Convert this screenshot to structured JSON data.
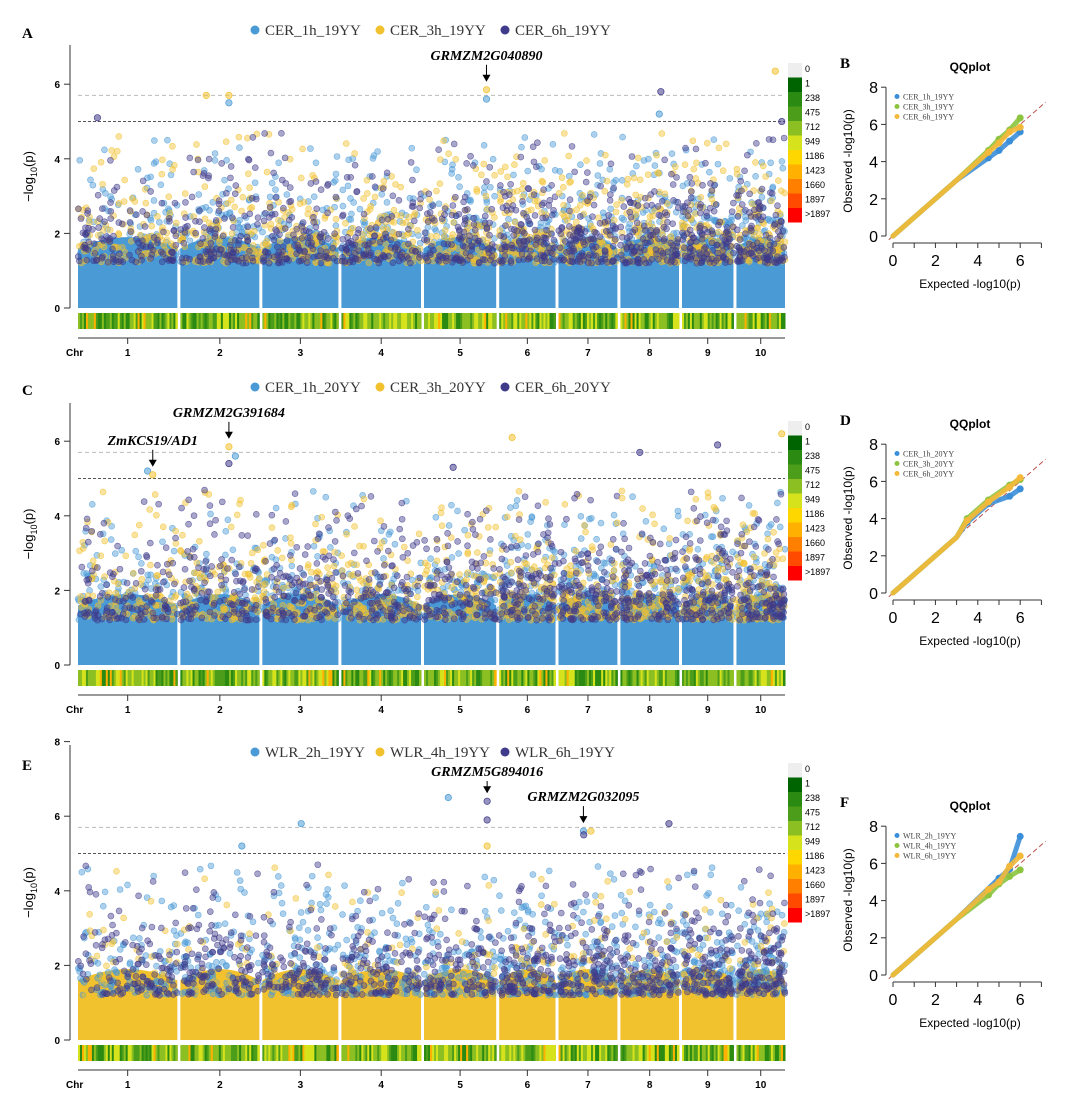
{
  "chart_data": [
    {
      "panel_label": "A",
      "type": "scatter",
      "subtype": "manhattan",
      "ylabel": "-log10(p)",
      "xlabel": "Chr",
      "ylim": [
        0,
        7
      ],
      "yticks": [
        0,
        2,
        4,
        6
      ],
      "chromosomes": [
        "1",
        "2",
        "3",
        "4",
        "5",
        "6",
        "7",
        "8",
        "9",
        "10"
      ],
      "chromosome_length_mb": [
        307,
        244,
        235,
        246,
        223,
        174,
        182,
        181,
        159,
        150
      ],
      "thresholds": [
        5,
        5.7
      ],
      "series": [
        {
          "name": "CER_1h_19YY",
          "color": "#4a9ad6",
          "peaks": [
            {
              "chr": "2",
              "pos_mb": 150,
              "y": 5.5
            },
            {
              "chr": "5",
              "pos_mb": 193,
              "y": 5.6
            },
            {
              "chr": "8",
              "pos_mb": 120,
              "y": 5.2
            }
          ]
        },
        {
          "name": "CER_3h_19YY",
          "color": "#f2c12e",
          "peaks": [
            {
              "chr": "2",
              "pos_mb": 150,
              "y": 5.7
            },
            {
              "chr": "2",
              "pos_mb": 80,
              "y": 5.7
            },
            {
              "chr": "5",
              "pos_mb": 193,
              "y": 5.85
            },
            {
              "chr": "10",
              "pos_mb": 120,
              "y": 6.35
            }
          ]
        },
        {
          "name": "CER_6h_19YY",
          "color": "#3f3a8a",
          "peaks": [
            {
              "chr": "8",
              "pos_mb": 125,
              "y": 5.8
            },
            {
              "chr": "1",
              "pos_mb": 60,
              "y": 5.1
            },
            {
              "chr": "10",
              "pos_mb": 140,
              "y": 5.0
            }
          ]
        }
      ],
      "annotations": [
        {
          "text": "GRMZM2G040890",
          "chr": "5",
          "pos_mb": 193
        }
      ]
    },
    {
      "panel_label": "C",
      "type": "scatter",
      "subtype": "manhattan",
      "ylabel": "-log10(p)",
      "xlabel": "Chr",
      "ylim": [
        0,
        7
      ],
      "yticks": [
        0,
        2,
        4,
        6
      ],
      "chromosomes": [
        "1",
        "2",
        "3",
        "4",
        "5",
        "6",
        "7",
        "8",
        "9",
        "10"
      ],
      "chromosome_length_mb": [
        307,
        244,
        235,
        246,
        223,
        174,
        182,
        181,
        159,
        150
      ],
      "thresholds": [
        5,
        5.7
      ],
      "series": [
        {
          "name": "CER_1h_20YY",
          "color": "#4a9ad6",
          "peaks": [
            {
              "chr": "1",
              "pos_mb": 215,
              "y": 5.2
            },
            {
              "chr": "2",
              "pos_mb": 170,
              "y": 5.6
            }
          ]
        },
        {
          "name": "CER_3h_20YY",
          "color": "#f2c12e",
          "peaks": [
            {
              "chr": "1",
              "pos_mb": 231,
              "y": 5.1
            },
            {
              "chr": "2",
              "pos_mb": 150,
              "y": 5.85
            },
            {
              "chr": "6",
              "pos_mb": 40,
              "y": 6.1
            },
            {
              "chr": "10",
              "pos_mb": 140,
              "y": 6.2
            }
          ]
        },
        {
          "name": "CER_6h_20YY",
          "color": "#3f3a8a",
          "peaks": [
            {
              "chr": "2",
              "pos_mb": 150,
              "y": 5.4
            },
            {
              "chr": "5",
              "pos_mb": 90,
              "y": 5.3
            },
            {
              "chr": "9",
              "pos_mb": 110,
              "y": 5.9
            },
            {
              "chr": "8",
              "pos_mb": 60,
              "y": 5.7
            }
          ]
        }
      ],
      "annotations": [
        {
          "text": "ZmKCS19/AD1",
          "chr": "1",
          "pos_mb": 231
        },
        {
          "text": "GRMZM2G391684",
          "chr": "2",
          "pos_mb": 150
        }
      ]
    },
    {
      "panel_label": "E",
      "type": "scatter",
      "subtype": "manhattan",
      "ylabel": "-log10(p)",
      "xlabel": "Chr",
      "ylim": [
        0,
        8
      ],
      "yticks": [
        0,
        2,
        4,
        6,
        8
      ],
      "chromosomes": [
        "1",
        "2",
        "3",
        "4",
        "5",
        "6",
        "7",
        "8",
        "9",
        "10"
      ],
      "chromosome_length_mb": [
        307,
        244,
        235,
        246,
        223,
        174,
        182,
        181,
        159,
        150
      ],
      "thresholds": [
        5,
        5.7
      ],
      "series": [
        {
          "name": "WLR_2h_19YY",
          "color": "#4a9ad6",
          "peaks": [
            {
              "chr": "3",
              "pos_mb": 120,
              "y": 5.8
            },
            {
              "chr": "5",
              "pos_mb": 75,
              "y": 6.5
            },
            {
              "chr": "7",
              "pos_mb": 77,
              "y": 5.6
            },
            {
              "chr": "2",
              "pos_mb": 190,
              "y": 5.2
            }
          ]
        },
        {
          "name": "WLR_4h_19YY",
          "color": "#f2c12e",
          "peaks": [
            {
              "chr": "5",
              "pos_mb": 195,
              "y": 5.2
            },
            {
              "chr": "7",
              "pos_mb": 100,
              "y": 5.6
            }
          ]
        },
        {
          "name": "WLR_6h_19YY",
          "color": "#3f3a8a",
          "peaks": [
            {
              "chr": "5",
              "pos_mb": 195,
              "y": 6.4
            },
            {
              "chr": "5",
              "pos_mb": 195,
              "y": 5.9
            },
            {
              "chr": "8",
              "pos_mb": 150,
              "y": 5.8
            },
            {
              "chr": "7",
              "pos_mb": 78,
              "y": 5.5
            }
          ]
        }
      ],
      "annotations": [
        {
          "text": "GRMZM5G894016",
          "chr": "5",
          "pos_mb": 195
        },
        {
          "text": "GRMZM2G032095",
          "chr": "7",
          "pos_mb": 77
        }
      ]
    },
    {
      "panel_label": "B",
      "type": "scatter",
      "subtype": "qq",
      "title": "QQplot",
      "xlabel": "Expected -log10(p)",
      "ylabel": "Observed -log10(p)",
      "xlim": [
        0,
        7
      ],
      "ylim": [
        0,
        8
      ],
      "xticks": [
        0,
        2,
        4,
        6
      ],
      "yticks": [
        0,
        2,
        4,
        6,
        8
      ],
      "series": [
        {
          "name": "CER_1h_19YY",
          "color": "#3b8fd9",
          "tail": [
            [
              4.5,
              4.2
            ],
            [
              5,
              4.6
            ],
            [
              5.5,
              5.1
            ],
            [
              6,
              5.6
            ]
          ]
        },
        {
          "name": "CER_3h_19YY",
          "color": "#8cc43f",
          "tail": [
            [
              4.5,
              4.6
            ],
            [
              5,
              5.2
            ],
            [
              5.5,
              5.7
            ],
            [
              6,
              6.35
            ]
          ]
        },
        {
          "name": "CER_6h_19YY",
          "color": "#f4b93a",
          "tail": [
            [
              4.5,
              4.5
            ],
            [
              5,
              5
            ],
            [
              5.5,
              5.6
            ],
            [
              6,
              5.85
            ]
          ]
        }
      ]
    },
    {
      "panel_label": "D",
      "type": "scatter",
      "subtype": "qq",
      "title": "QQplot",
      "xlabel": "Expected -log10(p)",
      "ylabel": "Observed -log10(p)",
      "xlim": [
        0,
        7
      ],
      "ylim": [
        0,
        8
      ],
      "xticks": [
        0,
        2,
        4,
        6
      ],
      "yticks": [
        0,
        2,
        4,
        6,
        8
      ],
      "series": [
        {
          "name": "CER_1h_20YY",
          "color": "#3b8fd9",
          "tail": [
            [
              3.5,
              3.8
            ],
            [
              4.5,
              4.8
            ],
            [
              5.5,
              5.2
            ],
            [
              6,
              5.6
            ]
          ]
        },
        {
          "name": "CER_3h_20YY",
          "color": "#8cc43f",
          "tail": [
            [
              3.5,
              4
            ],
            [
              4.5,
              5
            ],
            [
              5.5,
              5.8
            ],
            [
              6,
              6.1
            ]
          ]
        },
        {
          "name": "CER_6h_20YY",
          "color": "#f4b93a",
          "tail": [
            [
              3.5,
              3.9
            ],
            [
              4.5,
              4.9
            ],
            [
              5.5,
              5.7
            ],
            [
              6,
              6.2
            ]
          ]
        }
      ]
    },
    {
      "panel_label": "F",
      "type": "scatter",
      "subtype": "qq",
      "title": "QQplot",
      "xlabel": "Expected -log10(p)",
      "ylabel": "Observed -log10(p)",
      "xlim": [
        0,
        7
      ],
      "ylim": [
        0,
        8
      ],
      "xticks": [
        0,
        2,
        4,
        6
      ],
      "yticks": [
        0,
        2,
        4,
        6,
        8
      ],
      "series": [
        {
          "name": "WLR_2h_19YY",
          "color": "#3b8fd9",
          "tail": [
            [
              5,
              5.2
            ],
            [
              5.5,
              5.7
            ],
            [
              6,
              7.45
            ]
          ]
        },
        {
          "name": "WLR_4h_19YY",
          "color": "#8cc43f",
          "tail": [
            [
              4.5,
              4.3
            ],
            [
              5,
              4.9
            ],
            [
              5.5,
              5.3
            ],
            [
              6,
              5.65
            ]
          ]
        },
        {
          "name": "WLR_6h_19YY",
          "color": "#f4b93a",
          "tail": [
            [
              4.5,
              4.6
            ],
            [
              5,
              5
            ],
            [
              5.5,
              5.85
            ],
            [
              6,
              6.4
            ]
          ]
        }
      ]
    }
  ],
  "density_legend": {
    "values": [
      "0",
      "1",
      "238",
      "475",
      "712",
      "949",
      "1186",
      "1423",
      "1660",
      "1897",
      ">1897"
    ],
    "colors": [
      "#eeeeee",
      "#006400",
      "#2b8a12",
      "#4c9e1a",
      "#8cbf22",
      "#d6e21c",
      "#ffd700",
      "#ffb000",
      "#ff8000",
      "#ff4a00",
      "#ff0000"
    ]
  }
}
